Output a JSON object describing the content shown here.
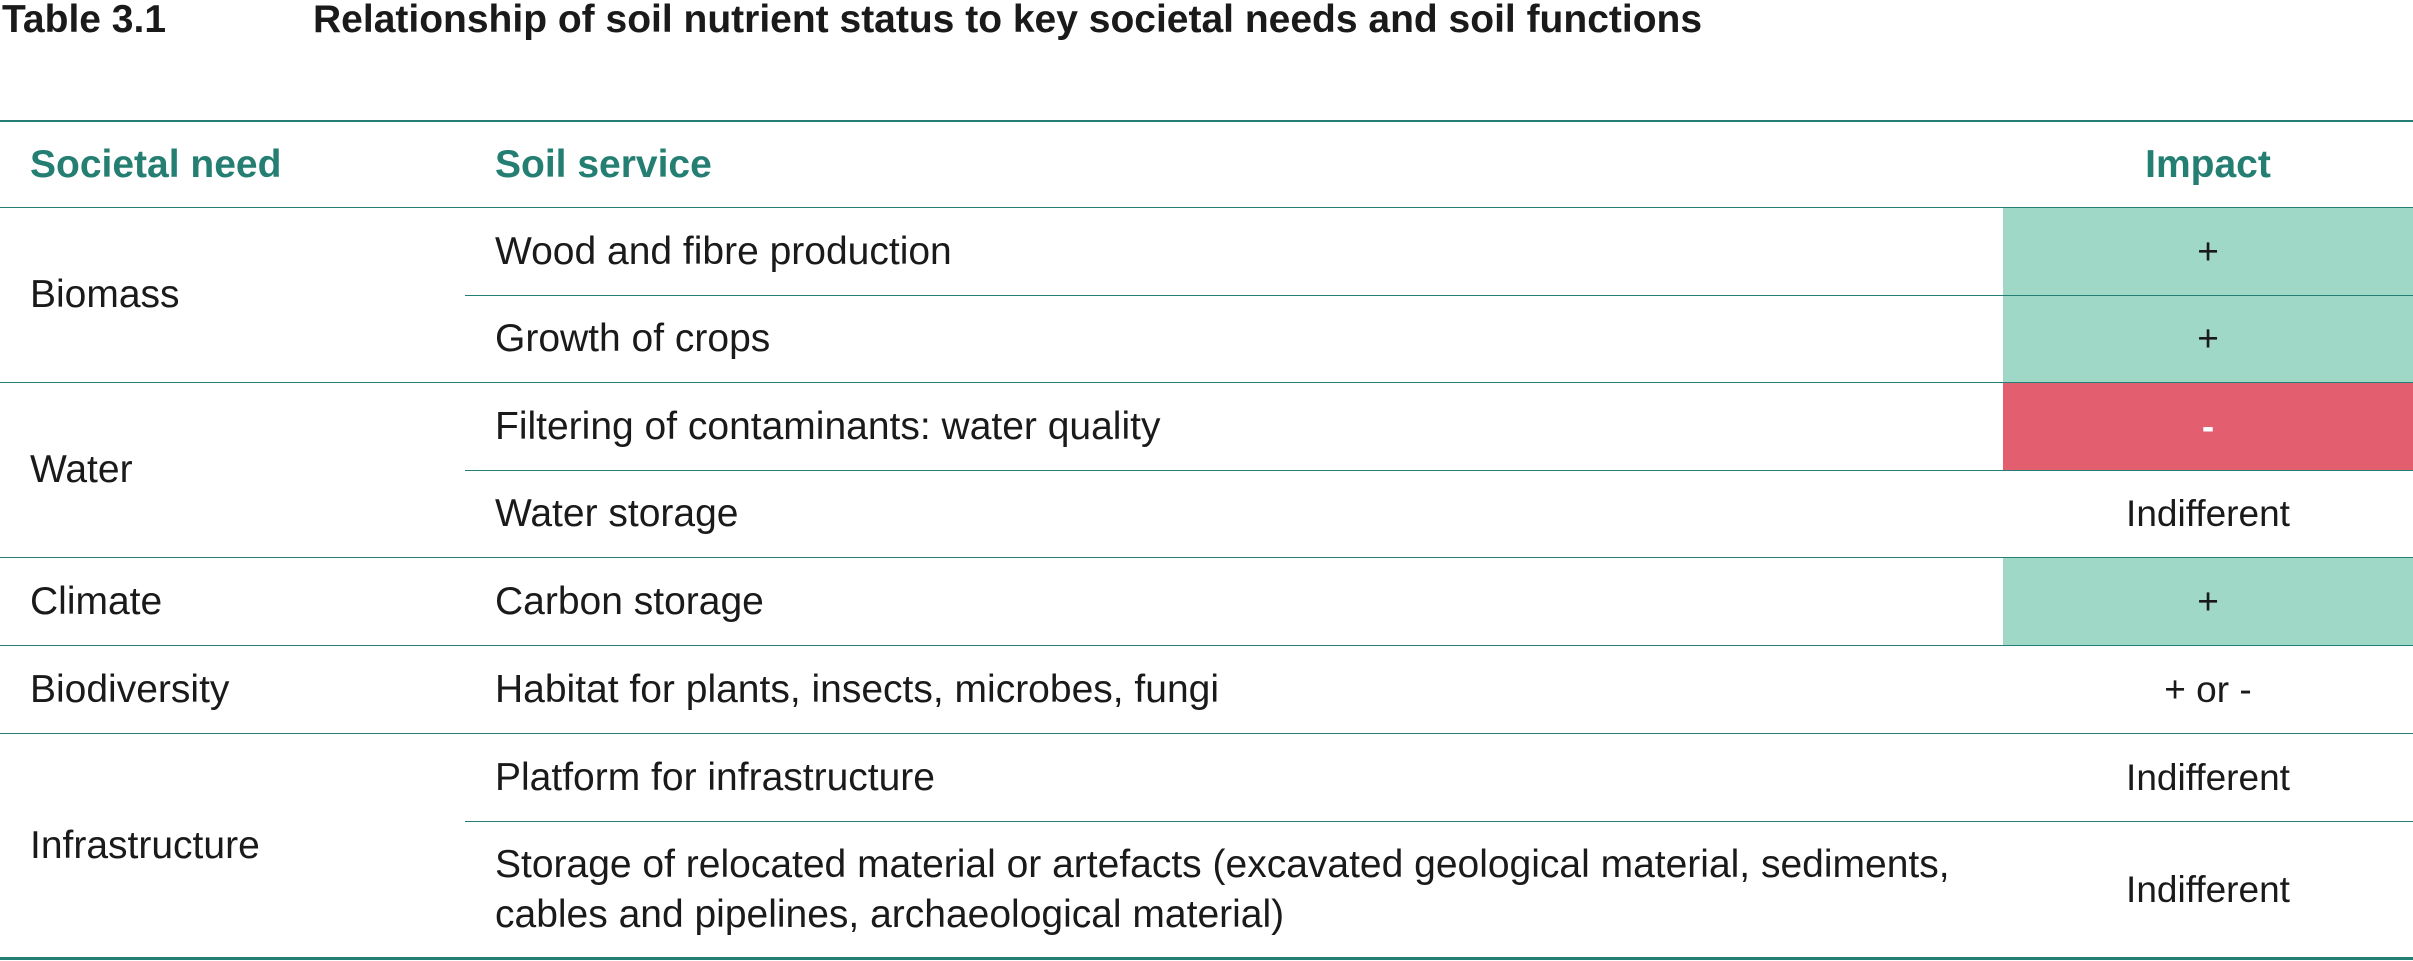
{
  "caption": {
    "number": "Table 3.1",
    "title": "Relationship of soil nutrient status to key societal needs and soil functions"
  },
  "columns": {
    "need": "Societal need",
    "service": "Soil service",
    "impact": "Impact"
  },
  "colors": {
    "accent": "#247e72",
    "positive": "#9fd8c6",
    "negative": "#e35e6e"
  },
  "groups": [
    {
      "need": "Biomass",
      "rows": [
        {
          "service": "Wood and fibre production",
          "impact": "+",
          "status": "positive"
        },
        {
          "service": "Growth of crops",
          "impact": "+",
          "status": "positive"
        }
      ]
    },
    {
      "need": "Water",
      "rows": [
        {
          "service": "Filtering of contaminants: water quality",
          "impact": "-",
          "status": "negative"
        },
        {
          "service": "Water storage",
          "impact": "Indifferent",
          "status": "neutral"
        }
      ]
    },
    {
      "need": "Climate",
      "rows": [
        {
          "service": "Carbon storage",
          "impact": "+",
          "status": "positive"
        }
      ]
    },
    {
      "need": "Biodiversity",
      "rows": [
        {
          "service": "Habitat for plants, insects, microbes, fungi",
          "impact": "+ or -",
          "status": "neutral"
        }
      ]
    },
    {
      "need": "Infrastructure",
      "rows": [
        {
          "service": "Platform for infrastructure",
          "impact": "Indifferent",
          "status": "neutral"
        },
        {
          "service": "Storage of relocated material or artefacts (excavated geological material, sediments, cables and pipelines, archaeological material)",
          "impact": "Indifferent",
          "status": "neutral"
        }
      ]
    }
  ]
}
